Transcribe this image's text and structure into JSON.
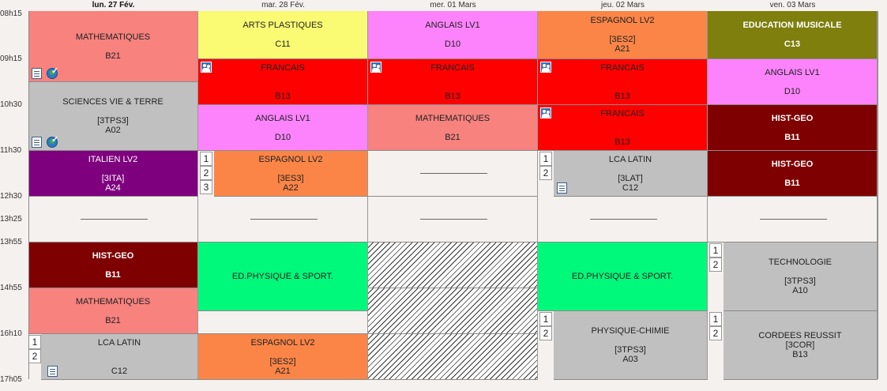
{
  "days": [
    {
      "label": "lun. 27 Fév."
    },
    {
      "label": "mar. 28 Fév."
    },
    {
      "label": "mer. 01 Mars"
    },
    {
      "label": "jeu. 02 Mars"
    },
    {
      "label": "ven. 03 Mars"
    }
  ],
  "times": [
    "08h15",
    "09h15",
    "10h30",
    "11h30",
    "12h30",
    "13h25",
    "13h55",
    "14h55",
    "16h10",
    "17h05"
  ],
  "colors": {
    "maths": "#f7827e",
    "arts": "#fafa73",
    "anglais": "#fc83fc",
    "espagnol": "#fa8547",
    "musique": "#7e7f0d",
    "francais": "#ff0000",
    "svt": "#c0c0c0",
    "histgeo": "#7e0000",
    "italien": "#7e007e",
    "sport": "#00f97a",
    "empty": "#f5f1ee"
  },
  "mon": {
    "c1": {
      "l1": "MATHEMATIQUES",
      "l2": "B21"
    },
    "c2": {
      "l1": "SCIENCES VIE & TERRE",
      "l2": "[3TPS3]",
      "l3": "A02"
    },
    "c3": {
      "l1": "ITALIEN LV2",
      "l2": "[3ITA]",
      "l3": "A24"
    },
    "c4": {
      "l1": "HIST-GEO",
      "l2": "B11"
    },
    "c5": {
      "l1": "MATHEMATIQUES",
      "l2": "B21"
    },
    "c6": {
      "l1": "LCA LATIN",
      "l2": "C12",
      "n1": "1",
      "n2": "2"
    }
  },
  "tue": {
    "c1": {
      "l1": "ARTS PLASTIQUES",
      "l2": "C11"
    },
    "c2": {
      "l1": "FRANCAIS",
      "l2": "B13"
    },
    "c3": {
      "l1": "ANGLAIS LV1",
      "l2": "D10"
    },
    "c4": {
      "l1": "ESPAGNOL LV2",
      "l2": "[3ES3]",
      "l3": "A22",
      "n1": "1",
      "n2": "2",
      "n3": "3"
    },
    "c5": {
      "l1": "ED.PHYSIQUE & SPORT."
    },
    "c6": {
      "l1": "ESPAGNOL LV2",
      "l2": "[3ES2]",
      "l3": "A21"
    }
  },
  "wed": {
    "c1": {
      "l1": "ANGLAIS LV1",
      "l2": "D10"
    },
    "c2": {
      "l1": "FRANCAIS",
      "l2": "B13"
    },
    "c3": {
      "l1": "MATHEMATIQUES",
      "l2": "B21"
    }
  },
  "thu": {
    "c1": {
      "l1": "ESPAGNOL LV2",
      "l2": "[3ES2]",
      "l3": "A21"
    },
    "c2": {
      "l1": "FRANCAIS",
      "l2": "B13"
    },
    "c3": {
      "l1": "FRANCAIS",
      "l2": "B13"
    },
    "c4": {
      "l1": "LCA LATIN",
      "l2": "[3LAT]",
      "l3": "C12",
      "n1": "1",
      "n2": "2"
    },
    "c5": {
      "l1": "ED.PHYSIQUE & SPORT."
    },
    "c6": {
      "l1": "PHYSIQUE-CHIMIE",
      "l2": "[3TPS3]",
      "l3": "A03",
      "n1": "1",
      "n2": "2"
    }
  },
  "fri": {
    "c1": {
      "l1": "EDUCATION MUSICALE",
      "l2": "C13"
    },
    "c2": {
      "l1": "ANGLAIS LV1",
      "l2": "D10"
    },
    "c3": {
      "l1": "HIST-GEO",
      "l2": "B11"
    },
    "c4": {
      "l1": "HIST-GEO",
      "l2": "B11"
    },
    "c5": {
      "l1": "TECHNOLOGIE",
      "l2": "[3TPS3]",
      "l3": "A10",
      "n1": "1",
      "n2": "2"
    },
    "c6": {
      "l1": "CORDEES REUSSIT",
      "l2": "[3COR]",
      "l3": "B13",
      "n1": "1",
      "n2": "2"
    }
  }
}
